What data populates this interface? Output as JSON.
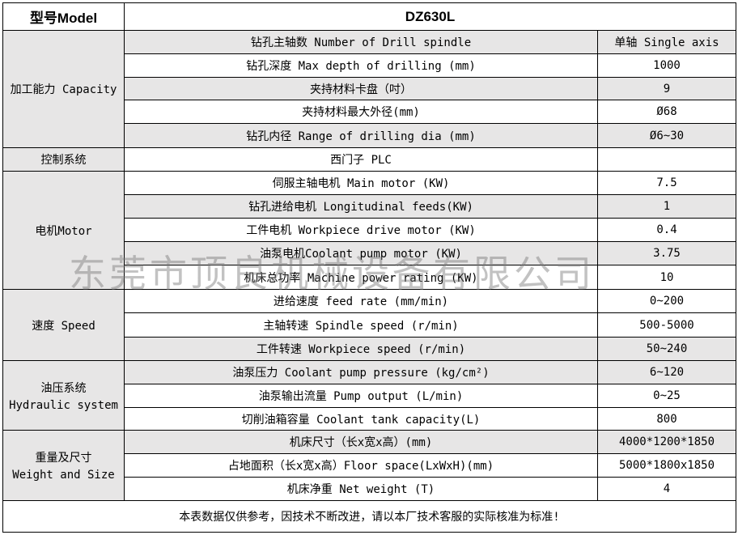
{
  "header": {
    "label": "型号Model",
    "value": "DZ630L"
  },
  "groups": [
    {
      "label": "加工能力 Capacity",
      "rows": [
        {
          "item": "钻孔主轴数 Number of Drill spindle",
          "value": "单轴 Single axis"
        },
        {
          "item": "钻孔深度 Max depth of drilling (mm)",
          "value": "1000"
        },
        {
          "item": "夹持材料卡盘（吋）",
          "value": "9"
        },
        {
          "item": "夹持材料最大外径(mm)",
          "value": "Ø68"
        },
        {
          "item": "钻孔内径 Range of drilling dia (mm)",
          "value": "Ø6~30"
        }
      ]
    },
    {
      "label": "控制系统",
      "rows": [
        {
          "item": "西门子 PLC",
          "value": ""
        }
      ]
    },
    {
      "label": "电机Motor",
      "rows": [
        {
          "item": "伺服主轴电机 Main motor (KW)",
          "value": "7.5"
        },
        {
          "item": "钻孔进给电机 Longitudinal feeds(KW)",
          "value": "1"
        },
        {
          "item": "工件电机 Workpiece drive motor (KW)",
          "value": "0.4"
        },
        {
          "item": "油泵电机Coolant pump motor (KW)",
          "value": "3.75"
        },
        {
          "item": "机床总功率 Machine power rating (KW)",
          "value": "10"
        }
      ]
    },
    {
      "label": "速度 Speed",
      "rows": [
        {
          "item": "进给速度 feed rate (mm/min)",
          "value": "0~200"
        },
        {
          "item": "主轴转速 Spindle speed (r/min)",
          "value": "500-5000"
        },
        {
          "item": "工件转速 Workpiece speed (r/min)",
          "value": "50~240"
        }
      ]
    },
    {
      "label": "油压系统",
      "label2": "Hydraulic system",
      "rows": [
        {
          "item": "油泵压力 Coolant pump pressure (kg/cm²)",
          "value": "6~120"
        },
        {
          "item": "油泵输出流量 Pump output  (L/min)",
          "value": "0~25"
        },
        {
          "item": "切削油箱容量 Coolant tank capacity(L)",
          "value": "800"
        }
      ]
    },
    {
      "label": "重量及尺寸",
      "label2": "Weight and Size",
      "rows": [
        {
          "item": "机床尺寸（长x宽x高）(mm)",
          "value": "4000*1200*1850"
        },
        {
          "item": "占地面积（长x宽x高）Floor space(LxWxH)(mm)",
          "value": "5000*1800x1850"
        },
        {
          "item": "机床净重 Net weight (T)",
          "value": "4"
        }
      ]
    }
  ],
  "footer": "本表数据仅供参考，因技术不断改进，请以本厂技术客服的实际核准为标准!",
  "watermark": "东莞市顶良机械设备有限公司",
  "colors": {
    "shaded_row": "#e7e6e6",
    "border": "#000000"
  }
}
